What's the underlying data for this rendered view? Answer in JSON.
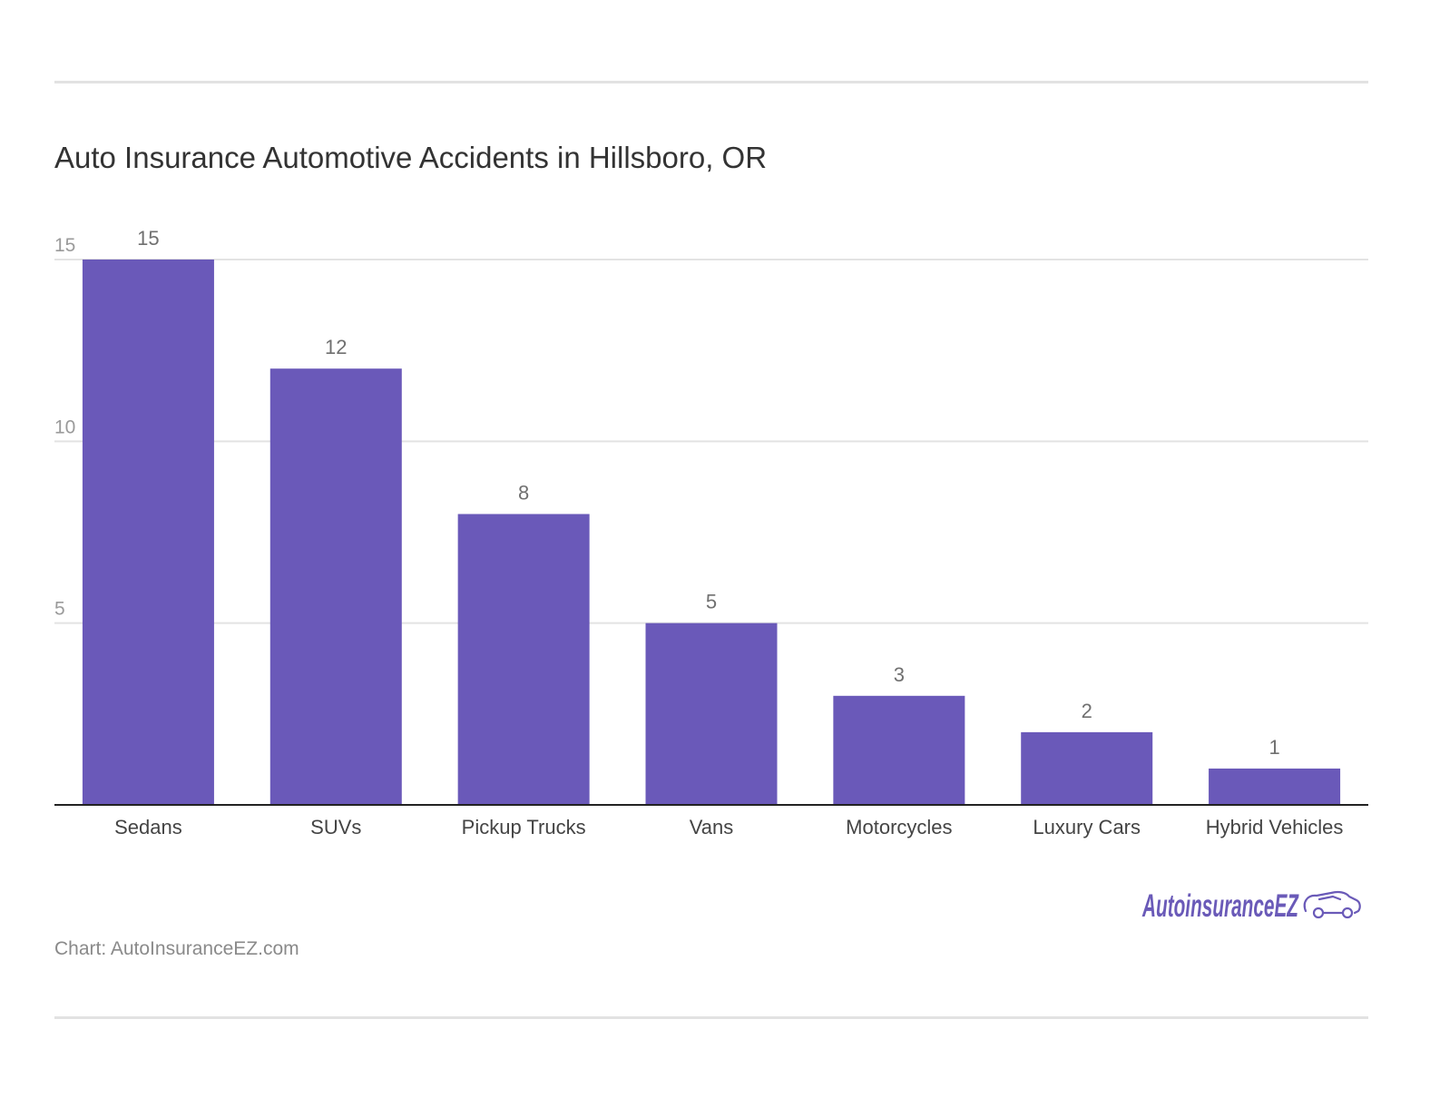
{
  "header": {
    "title": "Auto Insurance Automotive Accidents in Hillsboro, OR"
  },
  "footer": {
    "credit": "Chart: AutoInsuranceEZ.com"
  },
  "logo": {
    "text": "AutoinsuranceEZ",
    "icon": "car-outline-icon",
    "color": "#6a5ab8"
  },
  "chart_data": {
    "type": "bar",
    "categories": [
      "Sedans",
      "SUVs",
      "Pickup Trucks",
      "Vans",
      "Motorcycles",
      "Luxury Cars",
      "Hybrid Vehicles"
    ],
    "values": [
      15,
      12,
      8,
      5,
      3,
      2,
      1
    ],
    "ylim": [
      0,
      15
    ],
    "yticks": [
      5,
      10,
      15
    ],
    "grid": true,
    "bar_color": "#6a59b9",
    "data_labels": true
  }
}
